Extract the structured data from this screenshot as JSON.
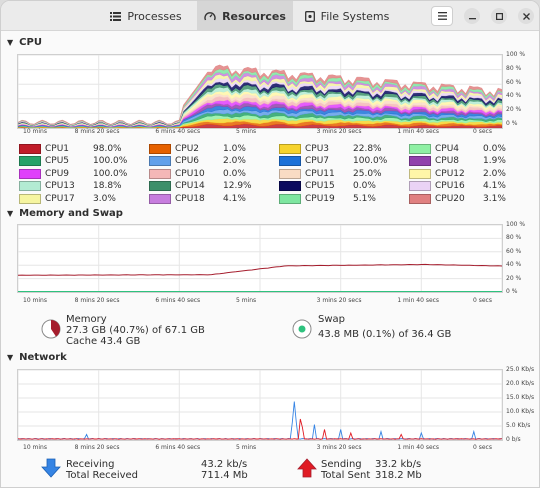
{
  "tabs": [
    {
      "label": "Processes",
      "icon": "list-icon"
    },
    {
      "label": "Resources",
      "icon": "gauge-icon"
    },
    {
      "label": "File Systems",
      "icon": "disk-icon"
    }
  ],
  "sections": {
    "cpu": "CPU",
    "memory": "Memory and Swap",
    "network": "Network"
  },
  "x_ticks": [
    "10 mins",
    "8 mins 20 secs",
    "6 mins 40 secs",
    "5 mins",
    "3 mins 20 secs",
    "1 min 40 secs",
    "0 secs"
  ],
  "pct_ticks": [
    "100 %",
    "80 %",
    "60 %",
    "40 %",
    "20 %",
    "0 %"
  ],
  "net_ticks": [
    "25.0 Kb/s",
    "20.0 Kb/s",
    "15.0 Kb/s",
    "10.0 Kb/s",
    "5.0 Kb/s",
    "0 b/s"
  ],
  "cpus": [
    {
      "name": "CPU1",
      "value": "98.0%",
      "color": "#c01c28"
    },
    {
      "name": "CPU2",
      "value": "1.0%",
      "color": "#e66100"
    },
    {
      "name": "CPU3",
      "value": "22.8%",
      "color": "#f6d32d"
    },
    {
      "name": "CPU4",
      "value": "0.0%",
      "color": "#8ff0a4"
    },
    {
      "name": "CPU5",
      "value": "100.0%",
      "color": "#26a269"
    },
    {
      "name": "CPU6",
      "value": "2.0%",
      "color": "#62a0ea"
    },
    {
      "name": "CPU7",
      "value": "100.0%",
      "color": "#1c71d8"
    },
    {
      "name": "CPU8",
      "value": "1.9%",
      "color": "#9141ac"
    },
    {
      "name": "CPU9",
      "value": "100.0%",
      "color": "#e040fb"
    },
    {
      "name": "CPU10",
      "value": "0.0%",
      "color": "#f4b7b7"
    },
    {
      "name": "CPU11",
      "value": "25.0%",
      "color": "#f9dcc4"
    },
    {
      "name": "CPU12",
      "value": "2.0%",
      "color": "#fff6a8"
    },
    {
      "name": "CPU13",
      "value": "18.8%",
      "color": "#b3ebd3"
    },
    {
      "name": "CPU14",
      "value": "12.9%",
      "color": "#3c8f6a"
    },
    {
      "name": "CPU15",
      "value": "0.0%",
      "color": "#0b0a5e"
    },
    {
      "name": "CPU16",
      "value": "4.1%",
      "color": "#ead3f5"
    },
    {
      "name": "CPU17",
      "value": "3.0%",
      "color": "#f6f5a0"
    },
    {
      "name": "CPU18",
      "value": "4.1%",
      "color": "#c77dde"
    },
    {
      "name": "CPU19",
      "value": "5.1%",
      "color": "#7ee6a0"
    },
    {
      "name": "CPU20",
      "value": "3.1%",
      "color": "#e08080"
    }
  ],
  "memory": {
    "title": "Memory",
    "line1": "27.3 GB (40.7%) of 67.1 GB",
    "line2": "Cache 43.4 GB",
    "percent": 40.7,
    "color": "#a51d2d"
  },
  "swap": {
    "title": "Swap",
    "line1": "43.8 MB (0.1%) of 36.4 GB",
    "percent": 0.1,
    "color": "#2ec27e"
  },
  "network": {
    "receiving_label": "Receiving",
    "receiving_value": "43.2 kb/s",
    "total_received_label": "Total Received",
    "total_received_value": "711.4 Mb",
    "sending_label": "Sending",
    "sending_value": "33.2 kb/s",
    "total_sent_label": "Total Sent",
    "total_sent_value": "318.2 Mb",
    "receive_color": "#3584e4",
    "send_color": "#e01b24"
  }
}
